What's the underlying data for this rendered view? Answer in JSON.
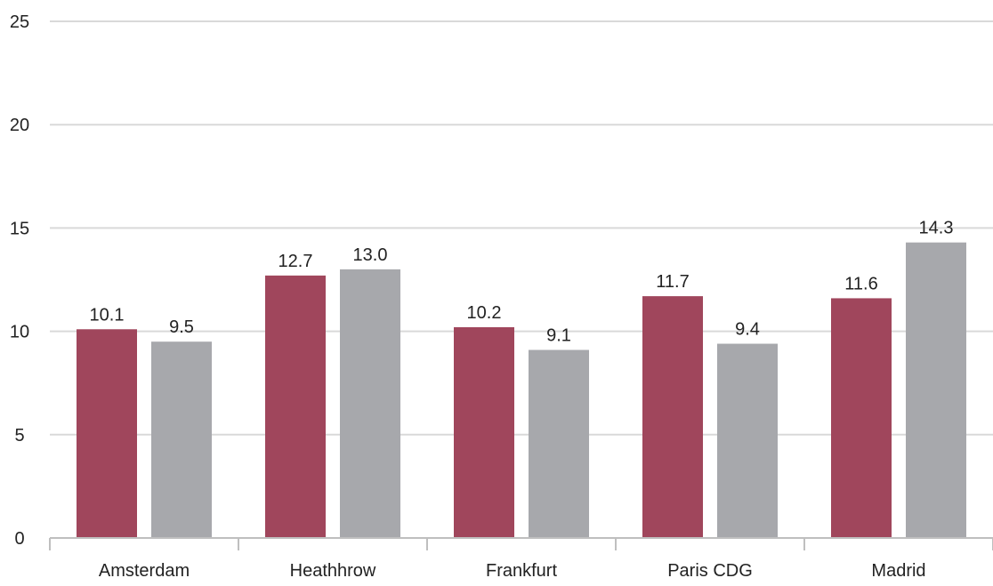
{
  "chart_data": {
    "type": "bar",
    "title": "",
    "xlabel": "",
    "ylabel": "",
    "categories": [
      "Amsterdam",
      "Heathhrow",
      "Frankfurt",
      "Paris CDG",
      "Madrid"
    ],
    "series": [
      {
        "values": [
          10.1,
          12.7,
          10.2,
          11.7,
          11.6
        ],
        "color": "#a0465c"
      },
      {
        "values": [
          9.5,
          13.0,
          9.1,
          9.4,
          14.3
        ],
        "color": "#a7a8ac"
      }
    ],
    "data_labels": [
      [
        "10.1",
        "12.7",
        "10.2",
        "11.7",
        "11.6"
      ],
      [
        "9.5",
        "13.0",
        "9.1",
        "9.4",
        "14.3"
      ]
    ],
    "ylim": [
      0,
      25
    ],
    "yticks": [
      "0",
      "5",
      "10",
      "15",
      "20",
      "25"
    ],
    "grid": true,
    "legend": "none",
    "gridline_color": "#d9d9d9",
    "axis_color": "#bfbfbf"
  }
}
